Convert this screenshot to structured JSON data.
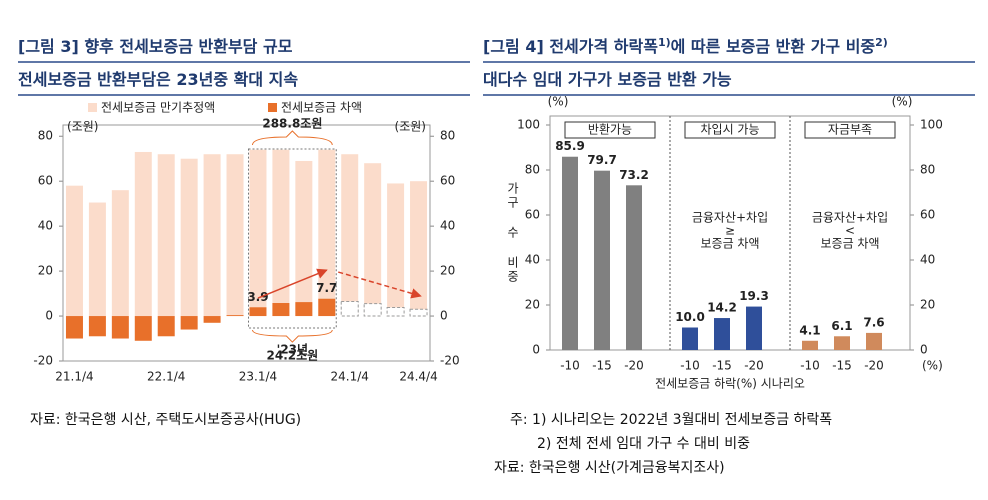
{
  "chart_data": [
    {
      "type": "bar",
      "mode": "overlay",
      "title": "[그림 3] 향후 전세보증금 반환부담 규모",
      "subtitle": "전세보증금 반환부담은 23년중 확대 지속",
      "y_unit": "(조원)",
      "y2_unit": "(조원)",
      "categories": [
        "21.1/4",
        null,
        null,
        null,
        "22.1/4",
        null,
        null,
        null,
        "23.1/4",
        null,
        null,
        null,
        "24.1/4",
        null,
        null,
        "24.4/4"
      ],
      "series": [
        {
          "name": "전세보증금 만기추정액",
          "color": "#fbdccb",
          "values": [
            58,
            50.5,
            56,
            73,
            72,
            70,
            72,
            72,
            74,
            74,
            69,
            74,
            72,
            68,
            59,
            60
          ]
        },
        {
          "name": "전세보증금 차액",
          "color": "#e8702a",
          "values": [
            -10,
            -9,
            -10,
            -11,
            -9,
            -6,
            -3,
            0.4,
            3.9,
            5.8,
            6.2,
            7.7,
            null,
            null,
            null,
            null
          ],
          "value_labels": [
            null,
            null,
            null,
            null,
            null,
            null,
            null,
            null,
            "3.9",
            null,
            null,
            "7.7",
            null,
            null,
            null,
            null
          ]
        },
        {
          "color": "#ffffff",
          "stroke": "#9a9a9a",
          "dashed": true,
          "values": [
            null,
            null,
            null,
            null,
            null,
            null,
            null,
            null,
            null,
            null,
            null,
            null,
            6.5,
            5.5,
            3.8,
            3.0
          ]
        }
      ],
      "annotations": [
        "288.8조원",
        "'23년",
        "24.2조원"
      ],
      "ylim": [
        -20,
        85
      ],
      "yticks": [
        -20,
        0,
        20,
        40,
        60,
        80
      ],
      "y2lim": [
        -20,
        85
      ],
      "y2ticks": [
        -20,
        0,
        20,
        40,
        60,
        80
      ],
      "grid": false,
      "notes": [
        "자료: 한국은행 시산, 주택도시보증공사(HUG)"
      ]
    },
    {
      "type": "bar",
      "mode": "panels",
      "title": [
        "[그림 4] 전세가격 하락폭",
        "1)",
        "에 따른 보증금 반환 가구 비중",
        "2)"
      ],
      "subtitle": "대다수 임대 가구가 보증금 반환 가능",
      "y_unit": "(%)",
      "y2_unit": "(%)",
      "y_label": "가구 수 비중",
      "x_label": "전세보증금 하락(%) 시나리오",
      "x_unit": "(%)",
      "categories": [
        "-10",
        "-15",
        "-20"
      ],
      "series": [
        {
          "name": "반환가능",
          "color": "#808080",
          "values": [
            85.9,
            79.7,
            73.2
          ],
          "annotation": null
        },
        {
          "name": "차입시 가능",
          "color": "#2f4f9a",
          "values": [
            10,
            14.2,
            19.3
          ],
          "value_labels": [
            "10.0",
            "14.2",
            "19.3"
          ],
          "annotation": [
            "금융자산+차입",
            "≥",
            "보증금 차액"
          ]
        },
        {
          "name": "자금부족",
          "color": "#d08a5c",
          "values": [
            4.1,
            6.1,
            7.6
          ],
          "annotation": [
            "금융자산+차입",
            "<",
            "보증금 차액"
          ]
        }
      ],
      "ylim": [
        0,
        104
      ],
      "yticks": [
        0,
        20,
        40,
        60,
        80,
        100
      ],
      "y2lim": [
        0,
        104
      ],
      "y2ticks": [
        0,
        20,
        40,
        60,
        80,
        100
      ],
      "grid": false,
      "notes": [
        "주: 1) 시나리오는 2022년 3월대비 전세보증금 하락폭",
        "2) 전체 전세 임대 가구 수 대비 비중",
        "자료: 한국은행 시산(가계금융복지조사)"
      ]
    }
  ]
}
